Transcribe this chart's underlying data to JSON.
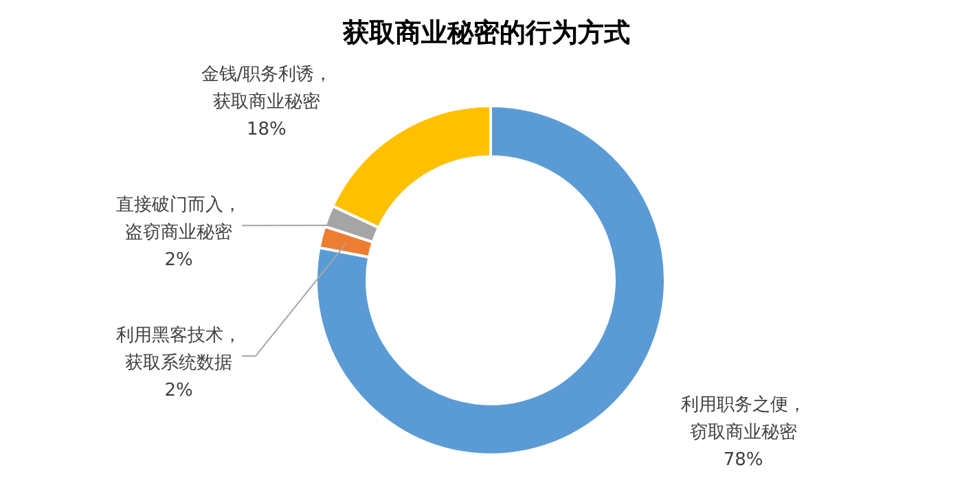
{
  "chart_data": {
    "type": "donut",
    "title": "获取商业秘密的行为方式",
    "categories": [
      "利用职务之便，窃取商业秘密",
      "利用黑客技术，获取系统数据",
      "直接破门而入，盗窃商业秘密",
      "金钱/职务利诱，获取商业秘密"
    ],
    "values": [
      78,
      2,
      2,
      18
    ],
    "colors": [
      "#5b9bd5",
      "#ed7d31",
      "#a5a5a5",
      "#ffc000"
    ],
    "value_labels": [
      "78%",
      "2%",
      "2%",
      "18%"
    ]
  }
}
